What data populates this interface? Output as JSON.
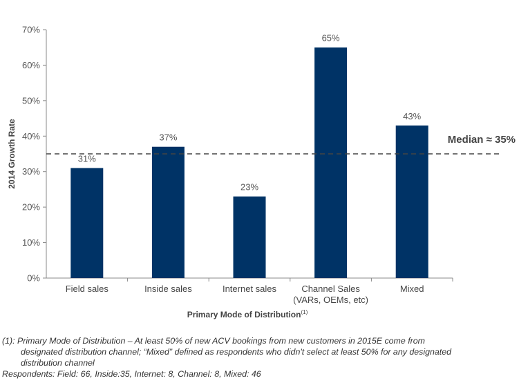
{
  "chart_data": {
    "type": "bar",
    "categories": [
      "Field sales",
      "Inside sales",
      "Internet sales",
      "Channel Sales\n(VARs, OEMs, etc)",
      "Mixed"
    ],
    "values": [
      31,
      37,
      23,
      65,
      43
    ],
    "data_labels": [
      "31%",
      "37%",
      "23%",
      "65%",
      "43%"
    ],
    "ylabel": "2014 Growth Rate",
    "xlabel": "Primary Mode of Distribution",
    "xlabel_superscript": "(1)",
    "ylim": [
      0,
      70
    ],
    "yticks": [
      0,
      10,
      20,
      30,
      40,
      50,
      60,
      70
    ],
    "ytick_labels": [
      "0%",
      "10%",
      "20%",
      "30%",
      "40%",
      "50%",
      "60%",
      "70%"
    ],
    "reference_line": {
      "value": 35,
      "label": "Median ≈ 35%",
      "style": "dashed"
    },
    "bar_color": "#003366",
    "grid": false
  },
  "footnote": {
    "line1": "(1): Primary Mode of Distribution – At least 50% of new ACV bookings from new customers in 2015E come from",
    "line2": "designated distribution channel; “Mixed” defined as respondents who didn't select at least 50% for any designated",
    "line3": "distribution channel"
  },
  "respondents": "Respondents: Field: 66, Inside:35, Internet: 8, Channel: 8, Mixed: 46"
}
